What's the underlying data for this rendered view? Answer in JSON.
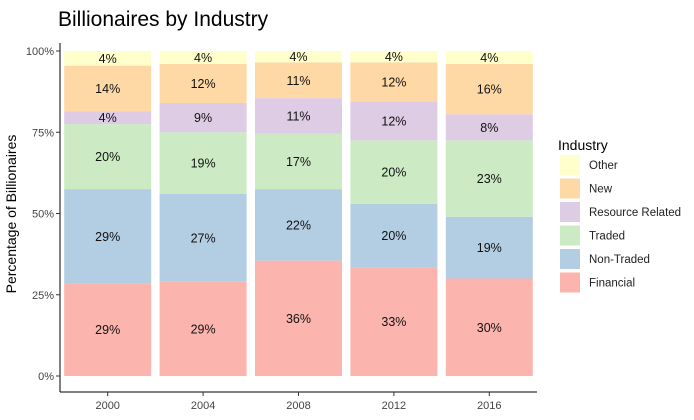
{
  "chart_data": {
    "type": "bar",
    "stacked": true,
    "title": "Billionaires by Industry",
    "xlabel": "",
    "ylabel": "Percentage of Billionaires",
    "categories": [
      "2000",
      "2004",
      "2008",
      "2012",
      "2016"
    ],
    "ylim": [
      0,
      100
    ],
    "yticks": [
      "0%",
      "25%",
      "50%",
      "75%",
      "100%"
    ],
    "grid": false,
    "legend": {
      "title": "Industry",
      "placement": "right"
    },
    "series": [
      {
        "name": "Financial",
        "color": "#FBB4AE",
        "values": [
          28.5,
          29,
          35.5,
          33.5,
          30
        ],
        "labels": [
          "29%",
          "29%",
          "36%",
          "33%",
          "30%"
        ]
      },
      {
        "name": "Non-Traded",
        "color": "#B3CDE3",
        "values": [
          29,
          27,
          22,
          19.5,
          19
        ],
        "labels": [
          "29%",
          "27%",
          "22%",
          "20%",
          "19%"
        ]
      },
      {
        "name": "Traded",
        "color": "#CCEBC5",
        "values": [
          20,
          19,
          17,
          19.5,
          23.5
        ],
        "labels": [
          "20%",
          "19%",
          "17%",
          "20%",
          "23%"
        ]
      },
      {
        "name": "Resource Related",
        "color": "#DECBE4",
        "values": [
          4,
          9,
          11,
          12,
          8
        ],
        "labels": [
          "4%",
          "9%",
          "11%",
          "12%",
          "8%"
        ]
      },
      {
        "name": "New",
        "color": "#FED9A6",
        "values": [
          14,
          12,
          11,
          12,
          15.5
        ],
        "labels": [
          "14%",
          "12%",
          "11%",
          "12%",
          "16%"
        ]
      },
      {
        "name": "Other",
        "color": "#FFFFCC",
        "values": [
          4.5,
          4,
          3.5,
          3.5,
          4
        ],
        "labels": [
          "4%",
          "4%",
          "4%",
          "4%",
          "4%"
        ]
      }
    ]
  }
}
